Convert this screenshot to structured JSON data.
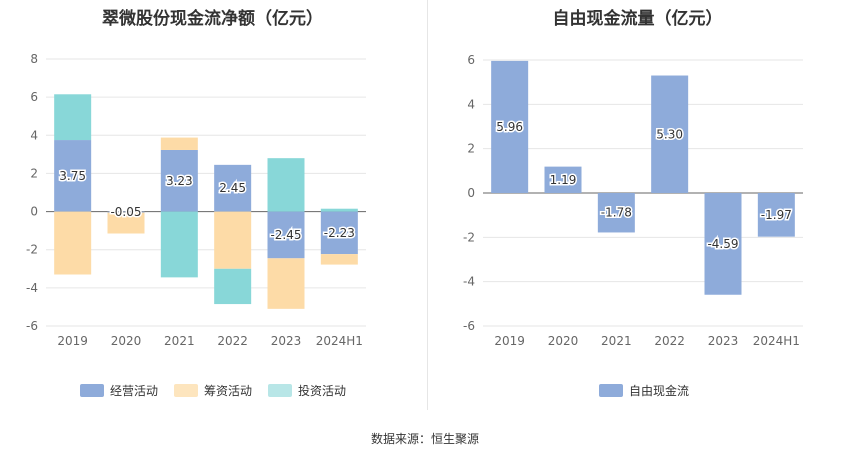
{
  "footer": {
    "source": "数据来源：恒生聚源"
  },
  "chart_data": [
    {
      "type": "bar",
      "stacked": true,
      "title": "翠微股份现金流净额（亿元）",
      "categories": [
        "2019",
        "2020",
        "2021",
        "2022",
        "2023",
        "2024H1"
      ],
      "series": [
        {
          "name": "经营活动",
          "color": "#8eabda",
          "values": [
            3.75,
            -0.05,
            3.23,
            2.45,
            -2.45,
            -2.23
          ]
        },
        {
          "name": "筹资活动",
          "color": "#fddba7",
          "values": [
            -3.3,
            -1.1,
            0.65,
            -3.0,
            -2.65,
            -0.55
          ]
        },
        {
          "name": "投资活动",
          "color": "#88d7d8",
          "values": [
            2.4,
            0.0,
            -3.45,
            -1.85,
            2.8,
            0.15
          ]
        }
      ],
      "data_labels": [
        "3.75",
        "-0.05",
        "3.23",
        "2.45",
        "-2.45",
        "-2.23"
      ],
      "ylim": [
        -6,
        8
      ],
      "yticks": [
        8,
        6,
        4,
        2,
        0,
        -2,
        -4,
        -6
      ],
      "grid": true,
      "legend": "bottom"
    },
    {
      "type": "bar",
      "title": "自由现金流量（亿元）",
      "categories": [
        "2019",
        "2020",
        "2021",
        "2022",
        "2023",
        "2024H1"
      ],
      "series": [
        {
          "name": "自由现金流",
          "color": "#8eabda",
          "values": [
            5.96,
            1.19,
            -1.78,
            5.3,
            -4.59,
            -1.97
          ]
        }
      ],
      "data_labels": [
        "5.96",
        "1.19",
        "-1.78",
        "5.30",
        "-4.59",
        "-1.97"
      ],
      "ylim": [
        -6,
        6
      ],
      "yticks": [
        6,
        4,
        2,
        0,
        -2,
        -4,
        -6
      ],
      "grid": true,
      "legend": "bottom"
    }
  ]
}
